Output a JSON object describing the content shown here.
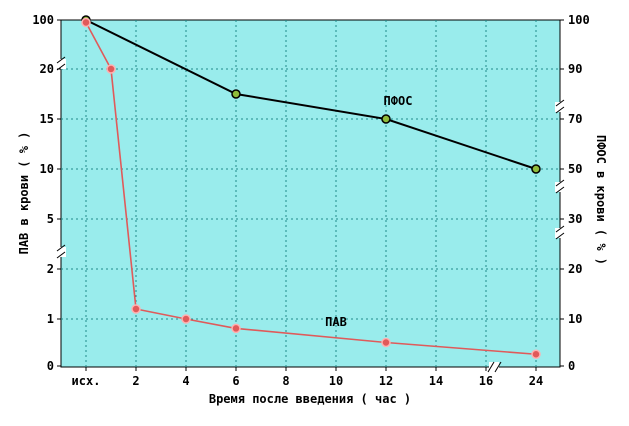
{
  "chart_data": {
    "type": "line",
    "xlabel": "Время после введения ( час )",
    "ylabel_left": "ПАВ в крови ( % )",
    "ylabel_right": "ПФОС в крови ( % )",
    "grid": true,
    "x_tick_labels": [
      "исх.",
      "2",
      "4",
      "6",
      "8",
      "10",
      "12",
      "14",
      "16",
      "24"
    ],
    "y_left_tick_labels": [
      "0",
      "1",
      "2",
      "5",
      "10",
      "15",
      "20",
      "100"
    ],
    "y_right_tick_labels": [
      "0",
      "10",
      "20",
      "30",
      "50",
      "70",
      "90",
      "100"
    ],
    "series": [
      {
        "name": "ПФОС",
        "axis": "right",
        "color": "#000000",
        "marker_fill": "#8fbc3a",
        "points": [
          {
            "x": "исх.",
            "y": 100
          },
          {
            "x": "6",
            "y": 80
          },
          {
            "x": "12",
            "y": 70
          },
          {
            "x": "24",
            "y": 50
          }
        ]
      },
      {
        "name": "ПАВ",
        "axis": "left",
        "color": "#e05a5a",
        "marker_fill": "#e05a5a",
        "points": [
          {
            "x": "исх.",
            "y": 96
          },
          {
            "x": "1",
            "y": 20
          },
          {
            "x": "2",
            "y": 1.2
          },
          {
            "x": "4",
            "y": 1.0
          },
          {
            "x": "6",
            "y": 0.8
          },
          {
            "x": "12",
            "y": 0.5
          },
          {
            "x": "24",
            "y": 0.25
          }
        ]
      }
    ],
    "colors": {
      "plot_background": "#99ecec",
      "grid": "#1e8a8a"
    }
  }
}
